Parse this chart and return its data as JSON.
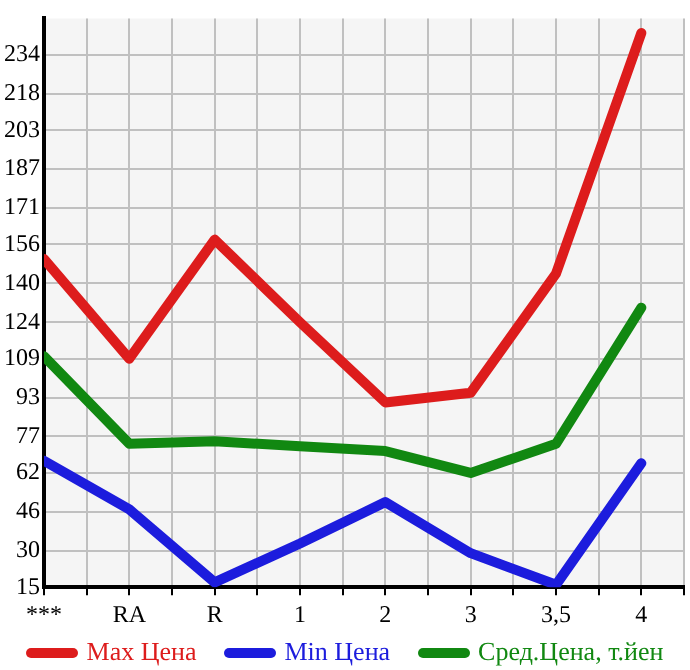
{
  "chart_data": {
    "type": "line",
    "categories": [
      "***",
      "RA",
      "R",
      "1",
      "2",
      "3",
      "3,5",
      "4"
    ],
    "series": [
      {
        "name": "Max Цена",
        "color": "#dd1c1c",
        "values": [
          150,
          109,
          158,
          124,
          91,
          95,
          144,
          243
        ]
      },
      {
        "name": "Min Цена",
        "color": "#1c1cdd",
        "values": [
          67,
          47,
          17,
          33,
          50,
          29,
          16,
          66
        ]
      },
      {
        "name": "Сред.Цена, т.йен",
        "color": "#118811",
        "values": [
          110,
          74,
          75,
          73,
          71,
          62,
          74,
          130
        ]
      }
    ],
    "ylim": [
      15,
      249
    ],
    "yticks": [
      15,
      30,
      46,
      62,
      77,
      93,
      109,
      124,
      140,
      156,
      171,
      187,
      203,
      218,
      234
    ],
    "grid": true,
    "legend": "bottom",
    "marker": "none",
    "line_style": "solid"
  }
}
